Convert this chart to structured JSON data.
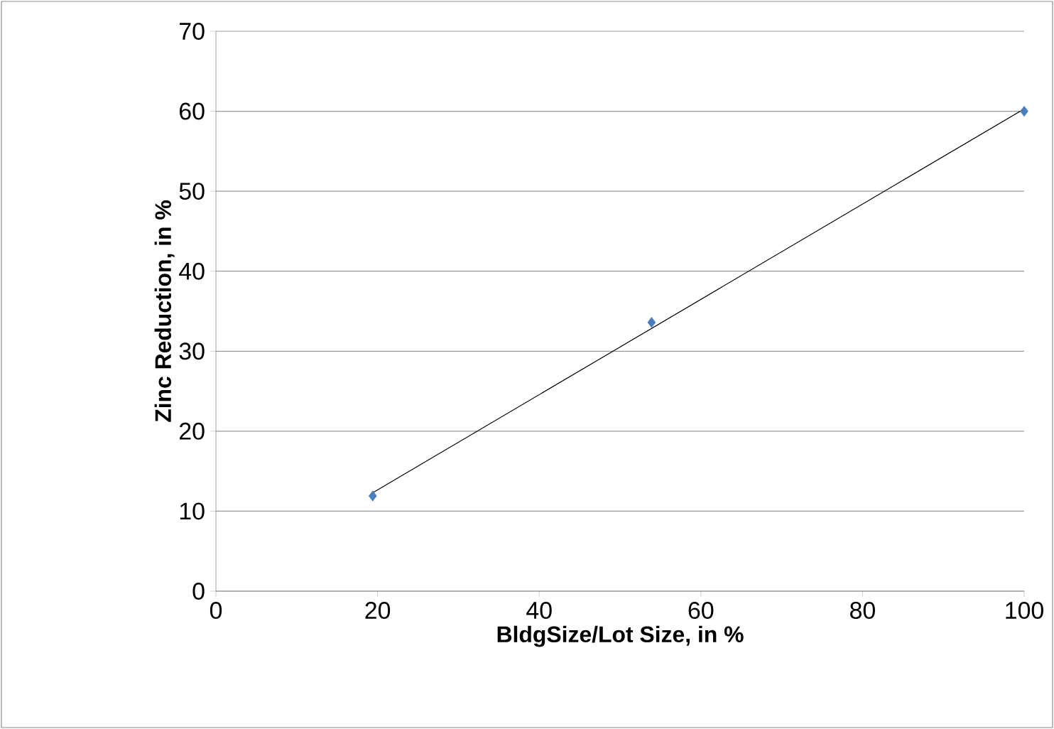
{
  "chart_data": {
    "type": "scatter",
    "xlabel": "BldgSize/Lot Size, in %",
    "ylabel": "Zinc Reduction, in %",
    "xlim": [
      0,
      100
    ],
    "xticks": [
      0,
      20,
      40,
      60,
      80,
      100
    ],
    "ylim": [
      0,
      70
    ],
    "yticks": [
      0,
      10,
      20,
      30,
      40,
      50,
      60,
      70
    ],
    "grid": "y",
    "marker": "diamond",
    "series": [
      {
        "color": "#4a7ebb",
        "x": [
          19.4,
          53.9,
          100
        ],
        "values": [
          11.9,
          33.6,
          60
        ]
      },
      {
        "type": "line",
        "color": "#000000",
        "marker": "none",
        "line_style": "solid",
        "x": [
          19.4,
          100
        ],
        "values": [
          12.3,
          60.3
        ]
      }
    ]
  }
}
